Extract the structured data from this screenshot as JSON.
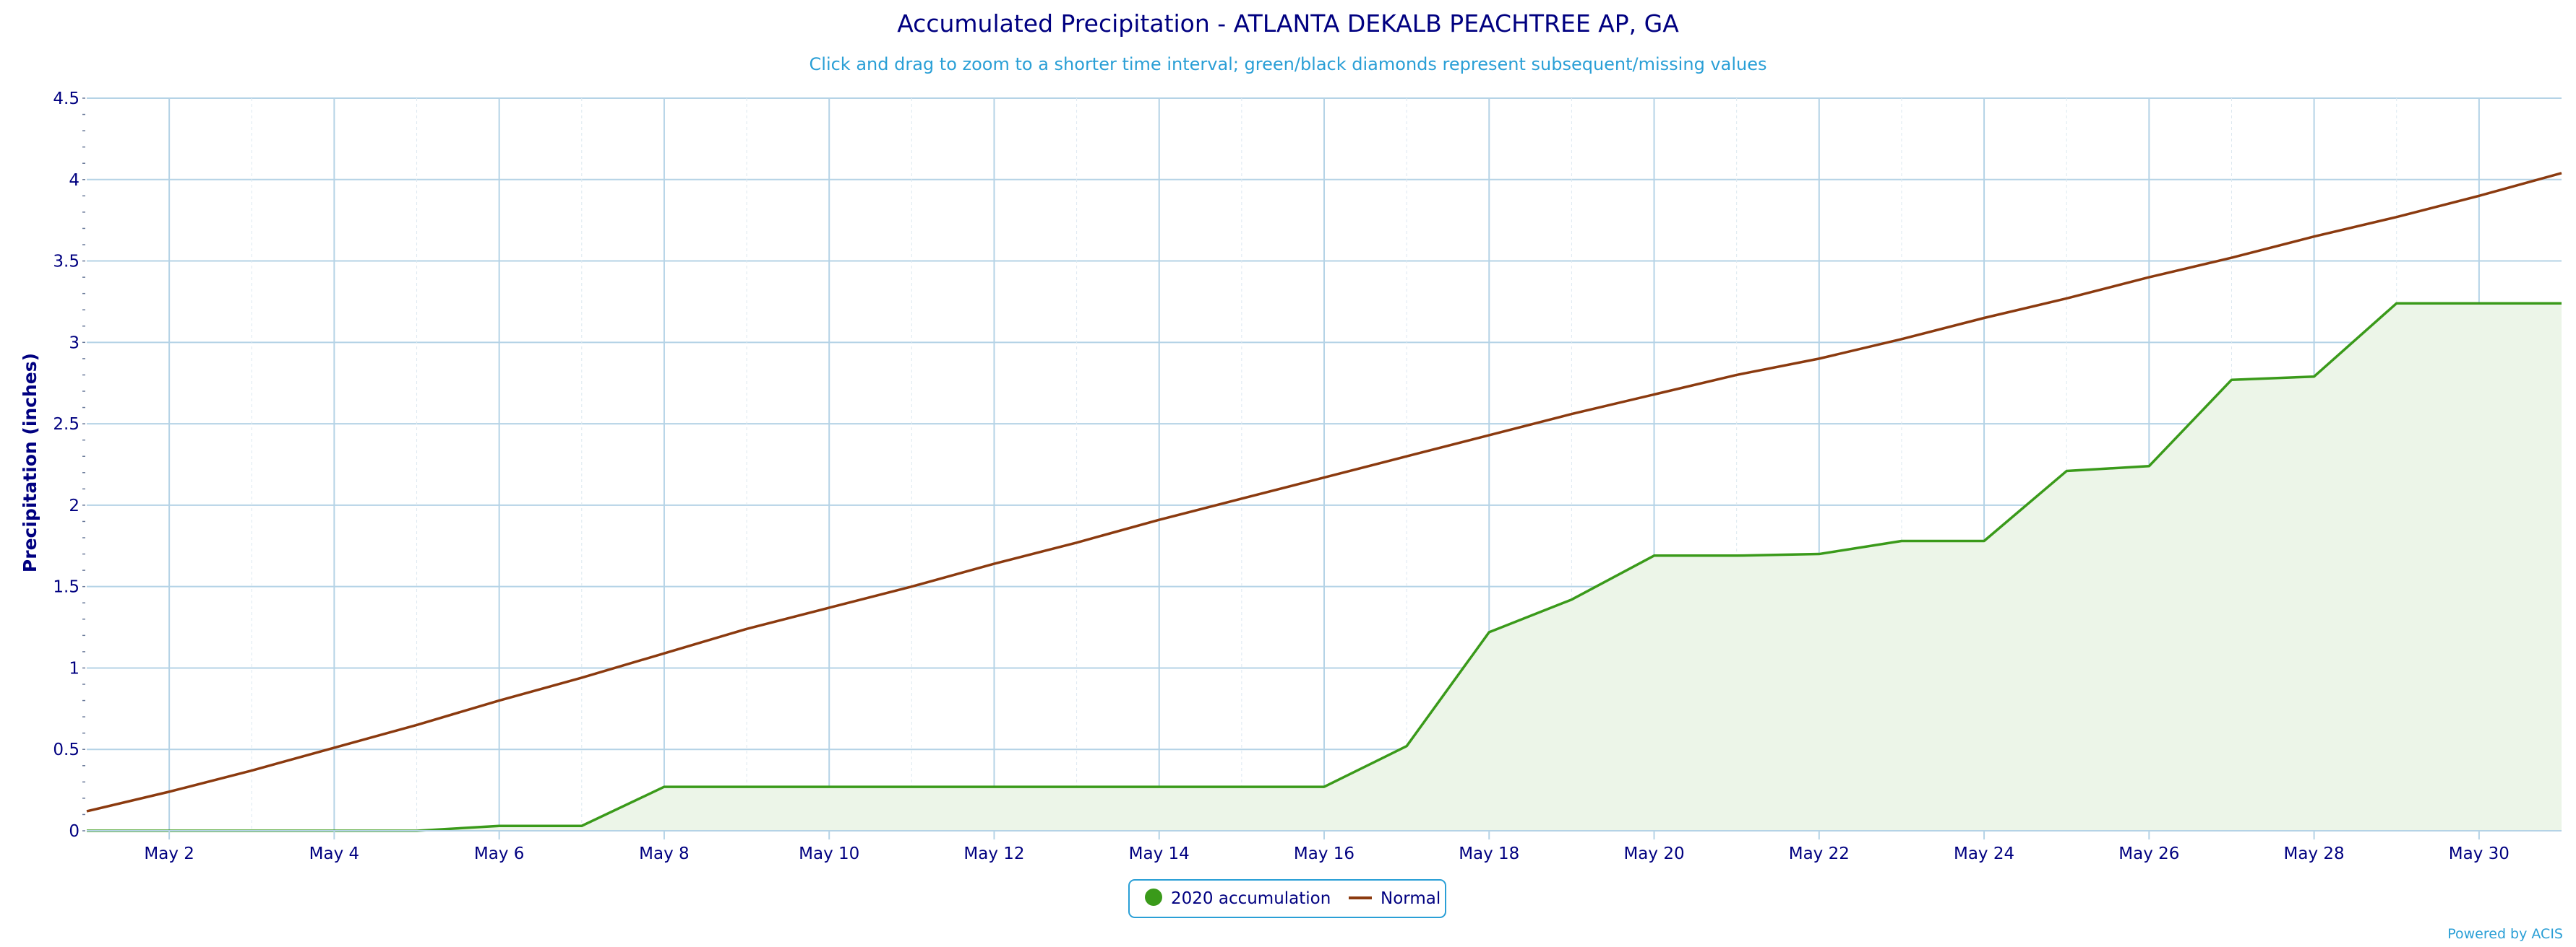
{
  "colors": {
    "title": "#000080",
    "subtitle": "#2a9fd6",
    "grid": "#b5d3e6",
    "accumulation_line": "#3a9a1a",
    "accumulation_fill": "#ecf5e8",
    "normal_line": "#8b3a0f",
    "legend_border": "#2a9fd6",
    "credits": "#2a9fd6"
  },
  "chart_data": {
    "type": "area",
    "title": "Accumulated Precipitation - ATLANTA DEKALB PEACHTREE AP, GA",
    "subtitle": "Click and drag to zoom to a shorter time interval; green/black diamonds represent subsequent/missing values",
    "xlabel": "",
    "ylabel": "Precipitation (inches)",
    "ylim": [
      0,
      4.5
    ],
    "yticks": [
      "0",
      "0.5",
      "1",
      "1.5",
      "2",
      "2.5",
      "3",
      "3.5",
      "4",
      "4.5"
    ],
    "xlim": [
      1,
      31
    ],
    "xticks": [
      {
        "day": 2,
        "label": "May 2"
      },
      {
        "day": 4,
        "label": "May 4"
      },
      {
        "day": 6,
        "label": "May 6"
      },
      {
        "day": 8,
        "label": "May 8"
      },
      {
        "day": 10,
        "label": "May 10"
      },
      {
        "day": 12,
        "label": "May 12"
      },
      {
        "day": 14,
        "label": "May 14"
      },
      {
        "day": 16,
        "label": "May 16"
      },
      {
        "day": 18,
        "label": "May 18"
      },
      {
        "day": 20,
        "label": "May 20"
      },
      {
        "day": 22,
        "label": "May 22"
      },
      {
        "day": 24,
        "label": "May 24"
      },
      {
        "day": 26,
        "label": "May 26"
      },
      {
        "day": 28,
        "label": "May 28"
      },
      {
        "day": 30,
        "label": "May 30"
      }
    ],
    "x": [
      1,
      2,
      3,
      4,
      5,
      6,
      7,
      8,
      9,
      10,
      11,
      12,
      13,
      14,
      15,
      16,
      17,
      18,
      19,
      20,
      21,
      22,
      23,
      24,
      25,
      26,
      27,
      28,
      29,
      30,
      31
    ],
    "grid": true,
    "legend_position": "bottom-center",
    "series": [
      {
        "name": "2020 accumulation",
        "type": "area",
        "values": [
          0.0,
          0.0,
          0.0,
          0.0,
          0.0,
          0.03,
          0.03,
          0.27,
          0.27,
          0.27,
          0.27,
          0.27,
          0.27,
          0.27,
          0.27,
          0.27,
          0.52,
          1.22,
          1.42,
          1.69,
          1.69,
          1.7,
          1.78,
          1.78,
          2.21,
          2.24,
          2.77,
          2.79,
          3.24,
          3.24,
          3.24
        ]
      },
      {
        "name": "Normal",
        "type": "line",
        "values": [
          0.12,
          0.24,
          0.37,
          0.51,
          0.65,
          0.8,
          0.94,
          1.09,
          1.24,
          1.37,
          1.5,
          1.64,
          1.77,
          1.91,
          2.04,
          2.17,
          2.3,
          2.43,
          2.56,
          2.68,
          2.8,
          2.9,
          3.02,
          3.15,
          3.27,
          3.4,
          3.52,
          3.65,
          3.77,
          3.9,
          4.04
        ]
      }
    ]
  },
  "credits": "Powered by ACIS"
}
